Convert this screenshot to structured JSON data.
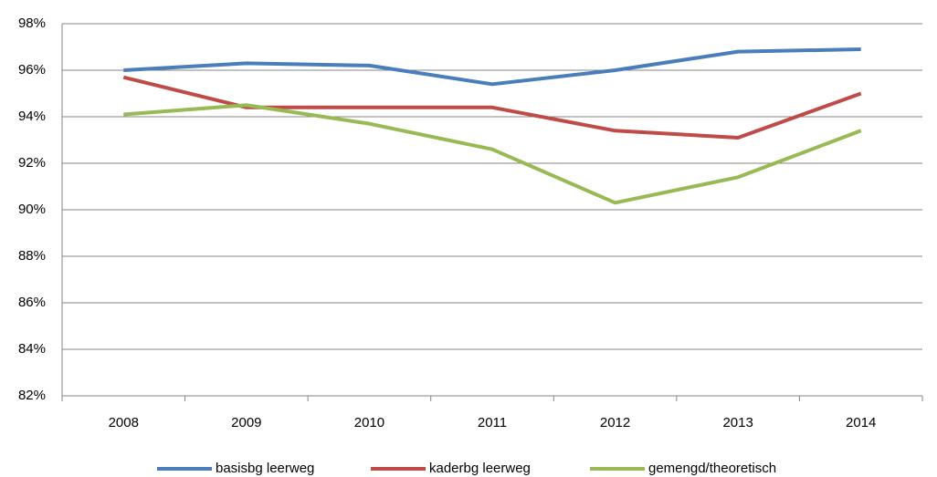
{
  "chart_data": {
    "type": "line",
    "categories": [
      "2008",
      "2009",
      "2010",
      "2011",
      "2012",
      "2013",
      "2014"
    ],
    "series": [
      {
        "name": "basisbg leerweg",
        "color": "#4a7ebb",
        "values": [
          96.0,
          96.3,
          96.2,
          95.4,
          96.0,
          96.8,
          96.9
        ]
      },
      {
        "name": "kaderbg leerweg",
        "color": "#be4b48",
        "values": [
          95.7,
          94.4,
          94.4,
          94.4,
          93.4,
          93.1,
          95.0
        ]
      },
      {
        "name": "gemengd/theoretisch",
        "color": "#98b954",
        "values": [
          94.1,
          94.5,
          93.7,
          92.6,
          90.3,
          91.4,
          93.4
        ]
      }
    ],
    "ylim": [
      82,
      98
    ],
    "yticks": [
      {
        "value": 82,
        "label": "82%"
      },
      {
        "value": 84,
        "label": "84%"
      },
      {
        "value": 86,
        "label": "86%"
      },
      {
        "value": 88,
        "label": "88%"
      },
      {
        "value": 90,
        "label": "90%"
      },
      {
        "value": 92,
        "label": "92%"
      },
      {
        "value": 94,
        "label": "94%"
      },
      {
        "value": 96,
        "label": "96%"
      },
      {
        "value": 98,
        "label": "98%"
      }
    ],
    "grid": true,
    "legend": "bottom"
  }
}
